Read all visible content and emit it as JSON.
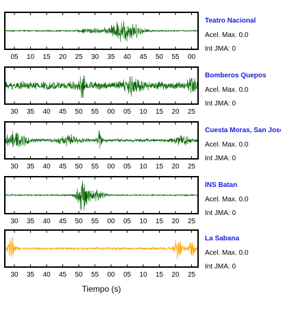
{
  "chart_data": {
    "type": "line",
    "xlabel": "Tiempo (s)",
    "panels": [
      {
        "station": "Teatro Nacional",
        "accel_label": "Acel. Max. 0.0",
        "jma_label": "Int JMA: 0",
        "color": "#006400",
        "tick_labels": [
          "05",
          "10",
          "15",
          "20",
          "25",
          "30",
          "35",
          "40",
          "45",
          "50",
          "55",
          "00"
        ],
        "waveform": {
          "base_amplitude": 0.05,
          "bursts": [
            {
              "t": 0.62,
              "amp": 0.75,
              "width": 0.08
            },
            {
              "t": 0.44,
              "amp": 0.18,
              "width": 0.05
            }
          ]
        }
      },
      {
        "station": "Bomberos Quepos",
        "accel_label": "Acel. Max. 0.0",
        "jma_label": "Int JMA: 0",
        "color": "#006400",
        "tick_labels": [
          "30",
          "35",
          "40",
          "45",
          "50",
          "55",
          "00",
          "05",
          "10",
          "15",
          "20",
          "25"
        ],
        "waveform": {
          "base_amplitude": 0.28,
          "bursts": [
            {
              "t": 0.4,
              "amp": 0.9,
              "width": 0.012
            },
            {
              "t": 0.66,
              "amp": 0.45,
              "width": 0.05
            },
            {
              "t": 0.97,
              "amp": 0.4,
              "width": 0.02
            }
          ]
        }
      },
      {
        "station": "Cuesta Moras, San Jose",
        "accel_label": "Acel. Max. 0.0",
        "jma_label": "Int JMA: 0",
        "color": "#006400",
        "tick_labels": [
          "30",
          "35",
          "40",
          "45",
          "50",
          "55",
          "00",
          "05",
          "10",
          "15",
          "20",
          "25"
        ],
        "waveform": {
          "base_amplitude": 0.12,
          "bursts": [
            {
              "t": 0.05,
              "amp": 0.5,
              "width": 0.06
            },
            {
              "t": 0.33,
              "amp": 0.3,
              "width": 0.05
            },
            {
              "t": 0.49,
              "amp": 0.85,
              "width": 0.01
            },
            {
              "t": 0.92,
              "amp": 0.35,
              "width": 0.04
            }
          ]
        }
      },
      {
        "station": "INS Batan",
        "accel_label": "Acel. Max. 0.0",
        "jma_label": "Int JMA: 0",
        "color": "#006400",
        "tick_labels": [
          "30",
          "35",
          "40",
          "45",
          "50",
          "55",
          "00",
          "05",
          "10",
          "15",
          "20",
          "25"
        ],
        "waveform": {
          "base_amplitude": 0.05,
          "bursts": [
            {
              "t": 0.4,
              "amp": 0.95,
              "width": 0.03
            },
            {
              "t": 0.47,
              "amp": 0.35,
              "width": 0.05
            }
          ]
        }
      },
      {
        "station": "La Sabana",
        "accel_label": "Acel. Max. 0.0",
        "jma_label": "Int JMA: 0",
        "color": "#ffa500",
        "tick_labels": [
          "30",
          "35",
          "40",
          "45",
          "50",
          "55",
          "00",
          "05",
          "10",
          "15",
          "20",
          "25"
        ],
        "waveform": {
          "base_amplitude": 0.1,
          "bursts": [
            {
              "t": 0.03,
              "amp": 0.7,
              "width": 0.02
            },
            {
              "t": 0.9,
              "amp": 0.85,
              "width": 0.02
            },
            {
              "t": 0.97,
              "amp": 0.5,
              "width": 0.02
            }
          ]
        }
      }
    ]
  }
}
